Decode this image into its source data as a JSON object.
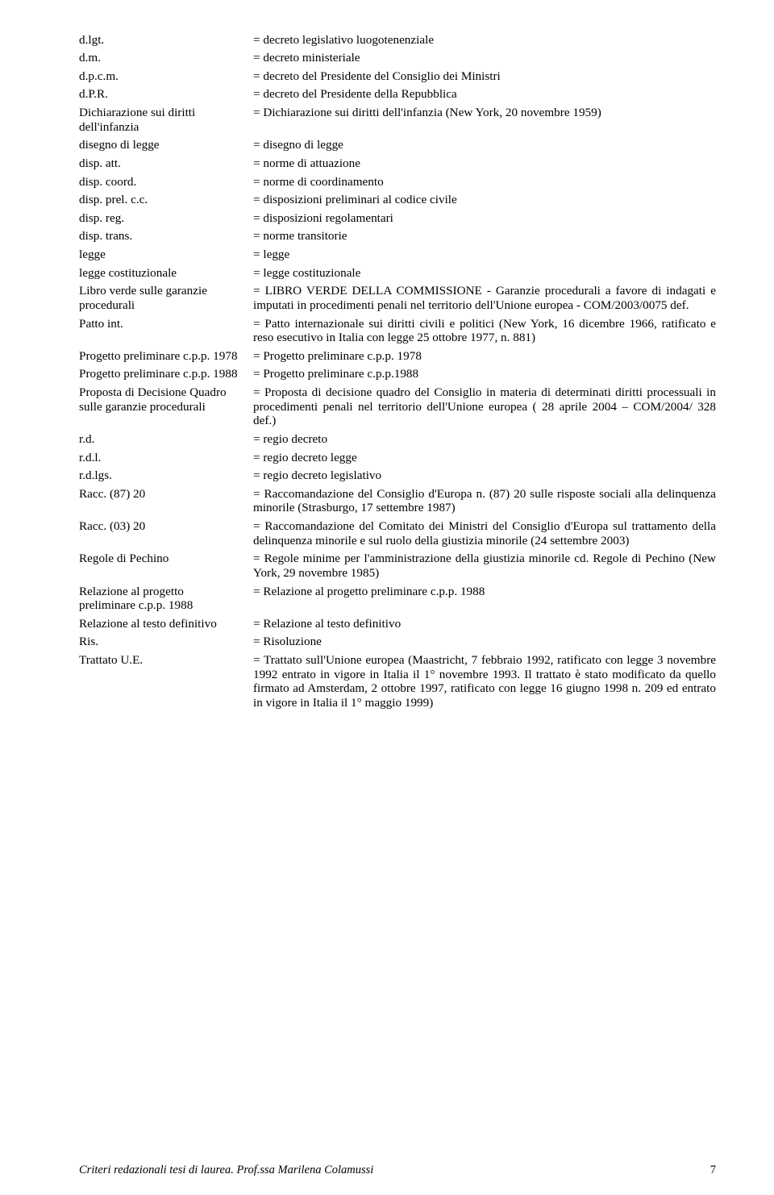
{
  "entries": [
    {
      "term": "d.lgt.",
      "def": "= decreto legislativo luogotenenziale"
    },
    {
      "term": "d.m.",
      "def": "= decreto ministeriale"
    },
    {
      "term": "d.p.c.m.",
      "def": "= decreto del Presidente del Consiglio dei Ministri"
    },
    {
      "term": "d.P.R.",
      "def": "= decreto del Presidente della Repubblica"
    },
    {
      "term": "Dichiarazione sui diritti dell'infanzia",
      "def": "= Dichiarazione sui diritti dell'infanzia (New York, 20 novembre 1959)"
    },
    {
      "term": "disegno di legge",
      "def": "= disegno di legge"
    },
    {
      "term": "disp. att.",
      "def": "= norme di attuazione"
    },
    {
      "term": "disp. coord.",
      "def": "= norme di coordinamento"
    },
    {
      "term": "disp. prel. c.c.",
      "def": "= disposizioni preliminari al codice civile"
    },
    {
      "term": "disp. reg.",
      "def": "= disposizioni regolamentari"
    },
    {
      "term": "disp. trans.",
      "def": "= norme transitorie"
    },
    {
      "term": "legge",
      "def": "= legge"
    },
    {
      "term": "legge costituzionale",
      "def": "= legge costituzionale"
    },
    {
      "term": "Libro verde sulle garanzie procedurali",
      "def": "= LIBRO VERDE DELLA COMMISSIONE - Garanzie procedurali a favore di indagati e imputati in procedimenti penali nel territorio dell'Unione europea  - COM/2003/0075 def."
    },
    {
      "term": "Patto int.",
      "def": "= Patto internazionale sui diritti civili e politici (New York, 16 dicembre 1966, ratificato e reso esecutivo in Italia con legge 25 ottobre 1977, n. 881)"
    },
    {
      "term": "Progetto preliminare c.p.p. 1978",
      "def": "= Progetto preliminare c.p.p. 1978"
    },
    {
      "term": "Progetto preliminare c.p.p. 1988",
      "def": "= Progetto preliminare c.p.p.1988"
    },
    {
      "term": "Proposta di Decisione Quadro sulle garanzie procedurali",
      "def": "= Proposta di decisione quadro del Consiglio in materia di determinati diritti processuali in procedimenti penali nel territorio dell'Unione europea ( 28 aprile 2004 – COM/2004/ 328 def.)"
    },
    {
      "term": "r.d.",
      "def": "= regio decreto"
    },
    {
      "term": "r.d.l.",
      "def": "= regio decreto legge"
    },
    {
      "term": "r.d.lgs.",
      "def": "= regio decreto legislativo"
    },
    {
      "term": "Racc. (87) 20",
      "def": "= Raccomandazione del Consiglio d'Europa n. (87) 20 sulle risposte sociali alla delinquenza minorile (Strasburgo, 17 settembre 1987)"
    },
    {
      "term": "Racc. (03) 20",
      "def": "= Raccomandazione del Comitato dei Ministri del Consiglio d'Europa sul trattamento della delinquenza minorile e sul ruolo della giustizia minorile (24 settembre 2003)"
    },
    {
      "term": "Regole di Pechino",
      "def": "= Regole minime per l'amministrazione della  giustizia minorile cd. Regole di Pechino (New York, 29 novembre 1985)"
    },
    {
      "term": "Relazione al progetto preliminare c.p.p. 1988",
      "def": "= Relazione al progetto preliminare c.p.p. 1988"
    },
    {
      "term": "Relazione al testo definitivo",
      "def": "= Relazione al testo definitivo"
    },
    {
      "term": "Ris.",
      "def": "= Risoluzione"
    },
    {
      "term": "Trattato U.E.",
      "def": "= Trattato sull'Unione europea (Maastricht, 7 febbraio 1992, ratificato  con legge 3 novembre 1992 entrato in vigore in Italia il 1° novembre 1993. Il trattato è stato modificato da quello  firmato ad Amsterdam, 2 ottobre 1997,  ratificato con legge 16 giugno 1998 n. 209 ed entrato in vigore in Italia il 1° maggio 1999)"
    }
  ],
  "footer": {
    "text": "Criteri redazionali tesi di laurea. Prof.ssa Marilena Colamussi",
    "page": "7"
  }
}
